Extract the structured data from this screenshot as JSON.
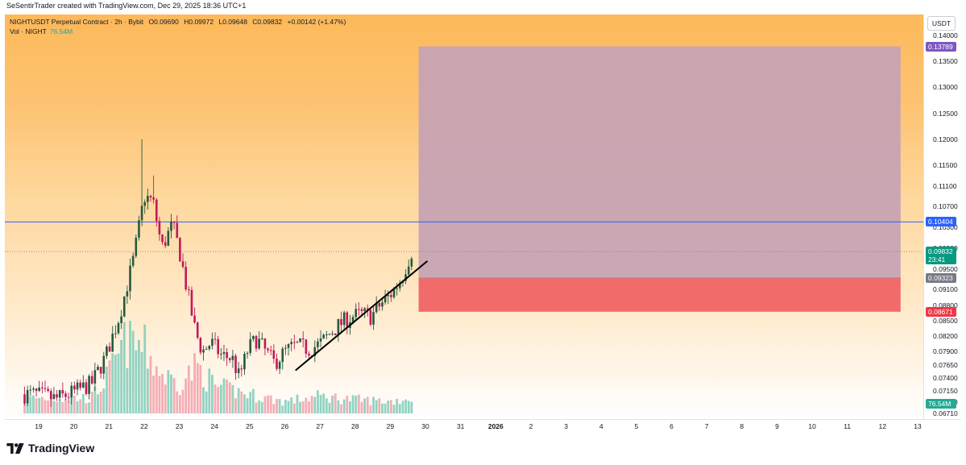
{
  "header": {
    "credit": "SeSentirTrader created with TradingView.com, Dec 29, 2025 18:36 UTC+1"
  },
  "legend": {
    "symbol": "NIGHTUSDT Perpetual Contract · 2h · Bybit",
    "open": "O0.09690",
    "high": "H0.09972",
    "low": "L0.09648",
    "close": "C0.09832",
    "change": "+0.00142 (+1.47%)",
    "vol_label": "Vol · NIGHT",
    "vol_value": "76.54M"
  },
  "currency": "USDT",
  "footer": {
    "brand": "TradingView"
  },
  "colors": {
    "up": "#26593f",
    "down": "#c2185b",
    "vol_up": "#7fcbb8",
    "vol_down": "#f2a0a8",
    "hline": "#2962ff",
    "target_zone": "#c5a2b4",
    "stop_zone": "#f26b6b",
    "trendline": "#000000"
  },
  "chart_data": {
    "type": "candlestick",
    "y_ticks": [
      "0.14000",
      "0.13500",
      "0.13000",
      "0.12500",
      "0.12000",
      "0.11500",
      "0.11100",
      "0.10700",
      "0.10300",
      "0.09900",
      "0.09500",
      "0.09100",
      "0.08800",
      "0.08500",
      "0.08200",
      "0.07900",
      "0.07650",
      "0.07400",
      "0.07150",
      "0.06930",
      "0.06710"
    ],
    "x_ticks": [
      {
        "label": "19",
        "bold": false
      },
      {
        "label": "20",
        "bold": false
      },
      {
        "label": "21",
        "bold": false
      },
      {
        "label": "22",
        "bold": false
      },
      {
        "label": "23",
        "bold": false
      },
      {
        "label": "24",
        "bold": false
      },
      {
        "label": "25",
        "bold": false
      },
      {
        "label": "26",
        "bold": false
      },
      {
        "label": "27",
        "bold": false
      },
      {
        "label": "28",
        "bold": false
      },
      {
        "label": "29",
        "bold": false
      },
      {
        "label": "30",
        "bold": false
      },
      {
        "label": "31",
        "bold": false
      },
      {
        "label": "2026",
        "bold": true
      },
      {
        "label": "2",
        "bold": false
      },
      {
        "label": "3",
        "bold": false
      },
      {
        "label": "4",
        "bold": false
      },
      {
        "label": "5",
        "bold": false
      },
      {
        "label": "6",
        "bold": false
      },
      {
        "label": "7",
        "bold": false
      },
      {
        "label": "8",
        "bold": false
      },
      {
        "label": "9",
        "bold": false
      },
      {
        "label": "10",
        "bold": false
      },
      {
        "label": "11",
        "bold": false
      },
      {
        "label": "12",
        "bold": false
      },
      {
        "label": "13",
        "bold": false
      }
    ],
    "price_labels": {
      "target": {
        "value": "0.13789",
        "color": "#7e57c2"
      },
      "horizontal_line": {
        "value": "0.10404",
        "color": "#2962ff"
      },
      "last_price": {
        "value": "0.09832",
        "countdown": "23:41",
        "color": "#089981"
      },
      "entry": {
        "value": "0.09323",
        "color": "#787b86"
      },
      "stop": {
        "value": "0.08671",
        "color": "#f23645"
      },
      "volume": {
        "value": "76.54M",
        "color": "#22ab94"
      }
    },
    "position_zone": {
      "start_day": 29.8,
      "end_day": 43.5,
      "target": 0.13789,
      "entry": 0.09323,
      "stop": 0.08671
    },
    "horizontal_line": 0.10404,
    "trendline": [
      {
        "day": 26.3,
        "price": 0.0754
      },
      {
        "day": 30.05,
        "price": 0.0965
      }
    ],
    "anchors": [
      {
        "day": 18.9,
        "price": 0.0708
      },
      {
        "day": 19.5,
        "price": 0.0699
      },
      {
        "day": 20.0,
        "price": 0.0712
      },
      {
        "day": 20.5,
        "price": 0.0728
      },
      {
        "day": 20.9,
        "price": 0.078
      },
      {
        "day": 21.3,
        "price": 0.086
      },
      {
        "day": 21.7,
        "price": 0.097
      },
      {
        "day": 22.0,
        "price": 0.109
      },
      {
        "day": 22.25,
        "price": 0.108
      },
      {
        "day": 22.5,
        "price": 0.099
      },
      {
        "day": 22.8,
        "price": 0.1035
      },
      {
        "day": 23.0,
        "price": 0.0985
      },
      {
        "day": 23.3,
        "price": 0.088
      },
      {
        "day": 23.45,
        "price": 0.083
      },
      {
        "day": 23.65,
        "price": 0.079
      },
      {
        "day": 23.9,
        "price": 0.0808
      },
      {
        "day": 24.2,
        "price": 0.0782
      },
      {
        "day": 24.5,
        "price": 0.0778
      },
      {
        "day": 24.7,
        "price": 0.074
      },
      {
        "day": 24.95,
        "price": 0.0795
      },
      {
        "day": 25.2,
        "price": 0.0815
      },
      {
        "day": 25.45,
        "price": 0.079
      },
      {
        "day": 25.7,
        "price": 0.0768
      },
      {
        "day": 26.0,
        "price": 0.079
      },
      {
        "day": 26.3,
        "price": 0.0802
      },
      {
        "day": 26.7,
        "price": 0.0795
      },
      {
        "day": 27.0,
        "price": 0.0805
      },
      {
        "day": 27.35,
        "price": 0.083
      },
      {
        "day": 27.6,
        "price": 0.0845
      },
      {
        "day": 27.9,
        "price": 0.0858
      },
      {
        "day": 28.2,
        "price": 0.0862
      },
      {
        "day": 28.45,
        "price": 0.0858
      },
      {
        "day": 28.7,
        "price": 0.088
      },
      {
        "day": 29.0,
        "price": 0.09
      },
      {
        "day": 29.3,
        "price": 0.093
      },
      {
        "day": 29.6,
        "price": 0.0983
      }
    ],
    "spikes": [
      {
        "day": 21.95,
        "price": 0.12
      },
      {
        "day": 22.3,
        "price": 0.113
      }
    ],
    "volume_anchors": [
      {
        "day": 18.9,
        "vol": 0.18
      },
      {
        "day": 20.5,
        "vol": 0.18
      },
      {
        "day": 21.0,
        "vol": 0.45
      },
      {
        "day": 21.5,
        "vol": 0.85
      },
      {
        "day": 22.0,
        "vol": 0.75
      },
      {
        "day": 22.5,
        "vol": 0.45
      },
      {
        "day": 23.0,
        "vol": 0.35
      },
      {
        "day": 23.5,
        "vol": 0.55
      },
      {
        "day": 24.0,
        "vol": 0.32
      },
      {
        "day": 25.0,
        "vol": 0.22
      },
      {
        "day": 26.0,
        "vol": 0.14
      },
      {
        "day": 27.0,
        "vol": 0.2
      },
      {
        "day": 28.0,
        "vol": 0.16
      },
      {
        "day": 29.0,
        "vol": 0.14
      },
      {
        "day": 29.6,
        "vol": 0.18
      }
    ],
    "start_day": 18.6,
    "end_day": 29.65
  }
}
